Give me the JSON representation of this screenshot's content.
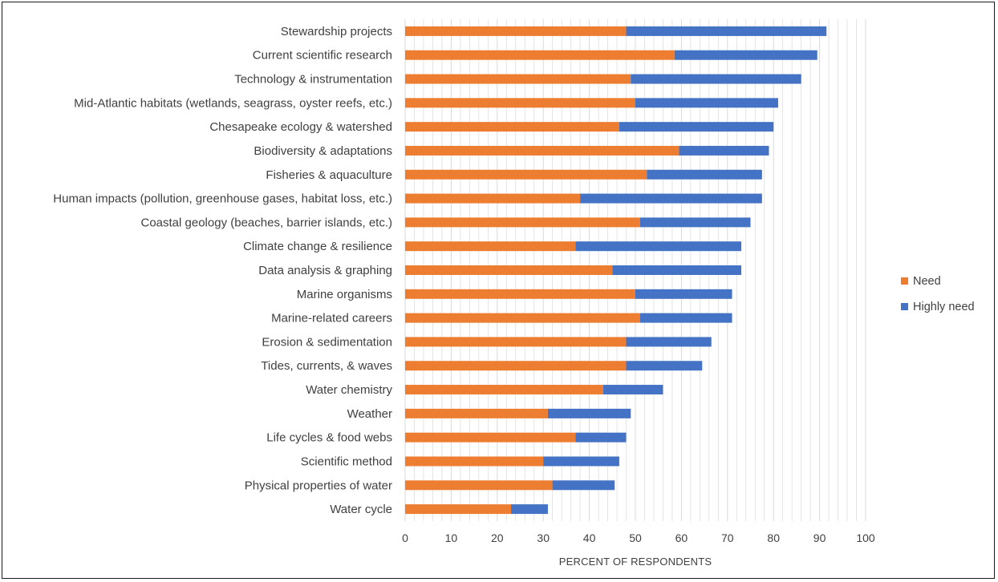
{
  "chart_data": {
    "type": "bar",
    "orientation": "horizontal",
    "stacked": true,
    "categories": [
      "Stewardship projects",
      "Current scientific research",
      "Technology & instrumentation",
      "Mid-Atlantic habitats (wetlands, seagrass, oyster reefs, etc.)",
      "Chesapeake ecology & watershed",
      "Biodiversity & adaptations",
      "Fisheries & aquaculture",
      "Human impacts (pollution, greenhouse gases, habitat loss, etc.)",
      "Coastal geology (beaches, barrier islands, etc.)",
      "Climate change & resilience",
      "Data analysis & graphing",
      "Marine organisms",
      "Marine-related careers",
      "Erosion & sedimentation",
      "Tides, currents, & waves",
      "Water chemistry",
      "Weather",
      "Life cycles & food webs",
      "Scientific method",
      "Physical properties of water",
      "Water cycle"
    ],
    "series": [
      {
        "name": "Need",
        "color": "#ED7D31",
        "values": [
          48,
          58.5,
          49,
          50,
          46.5,
          59.5,
          52.5,
          38,
          51,
          37,
          45,
          50,
          51,
          48,
          48,
          43,
          31,
          37,
          30,
          32,
          23
        ]
      },
      {
        "name": "Highly need",
        "color": "#4472C4",
        "values": [
          43.5,
          31,
          37,
          31,
          33.5,
          19.5,
          25,
          39.5,
          24,
          36,
          28,
          21,
          20,
          18.5,
          16.5,
          13,
          18,
          11,
          16.5,
          13.5,
          8
        ]
      }
    ],
    "xlabel": "PERCENT OF RESPONDENTS",
    "xlim": [
      0,
      100
    ],
    "xticks": [
      "0",
      "10",
      "20",
      "30",
      "40",
      "50",
      "60",
      "70",
      "80",
      "90",
      "100"
    ],
    "grid": "vertical minor gridlines",
    "legend": "right",
    "gridline_color": "#D9D9D9"
  }
}
